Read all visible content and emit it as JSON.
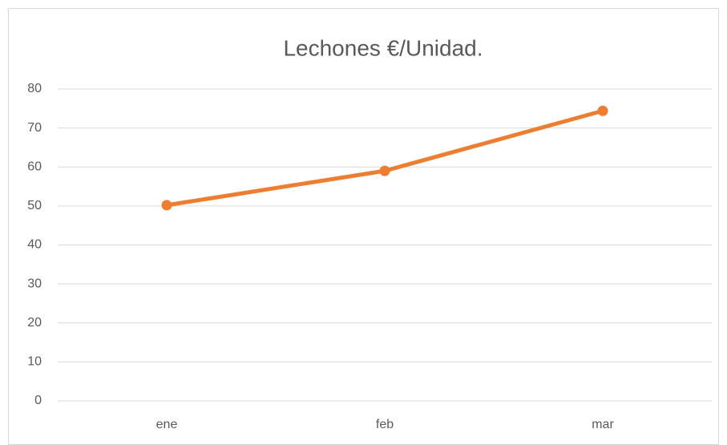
{
  "chart_data": {
    "type": "line",
    "title": "Lechones €/Unidad.",
    "categories": [
      "ene",
      "feb",
      "mar"
    ],
    "values": [
      50.2,
      59.0,
      74.4
    ],
    "color": "#ed7d31",
    "ylim": [
      0,
      80
    ],
    "yticks": [
      0,
      10,
      20,
      30,
      40,
      50,
      60,
      70,
      80
    ],
    "grid": true
  }
}
